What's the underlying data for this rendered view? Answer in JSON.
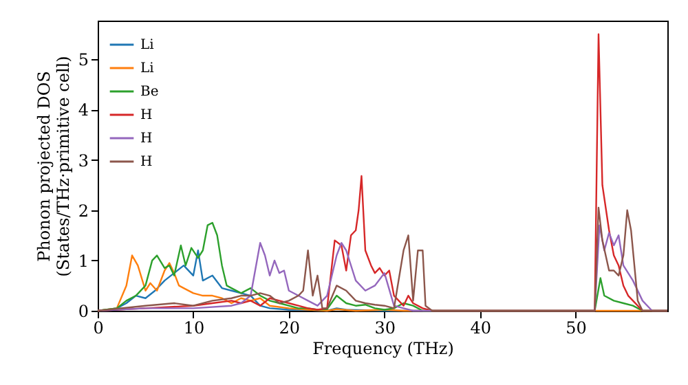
{
  "chart_data": {
    "type": "line",
    "xlabel": "Frequency (THz)",
    "ylabel": "Phonon projected DOS\n(States/THz·primitive cell)",
    "xlim": [
      0,
      59.6
    ],
    "ylim": [
      0,
      5.77
    ],
    "xticks": [
      0,
      10,
      20,
      30,
      40,
      50
    ],
    "yticks": [
      0,
      1,
      2,
      3,
      4,
      5
    ],
    "grid": false,
    "legend": "top left",
    "marker": "none",
    "line_style": "solid",
    "series": [
      {
        "name": "Li",
        "color": "#1f77b4",
        "x": [
          0,
          2,
          3,
          4,
          5,
          6,
          7,
          8,
          9,
          10,
          10.5,
          11,
          12,
          13,
          14,
          15,
          16,
          17,
          18,
          20,
          22,
          24,
          25,
          26,
          28,
          30,
          35
        ],
        "values": [
          0,
          0.05,
          0.15,
          0.3,
          0.25,
          0.4,
          0.6,
          0.75,
          0.9,
          0.7,
          1.2,
          0.6,
          0.7,
          0.45,
          0.4,
          0.35,
          0.3,
          0.1,
          0.05,
          0.02,
          0.02,
          0,
          0.05,
          0.02,
          0.01,
          0,
          0
        ]
      },
      {
        "name": "Li",
        "color": "#ff7f0e",
        "x": [
          0,
          2,
          3,
          3.6,
          4.2,
          5,
          5.5,
          6.2,
          7,
          7.5,
          8,
          8.5,
          9,
          10,
          11,
          12,
          13,
          14,
          15,
          16,
          17,
          18,
          20,
          22,
          24,
          25,
          27,
          30,
          32,
          52,
          59.6
        ],
        "values": [
          0,
          0.05,
          0.5,
          1.1,
          0.9,
          0.4,
          0.55,
          0.4,
          0.8,
          0.95,
          0.75,
          0.5,
          0.45,
          0.35,
          0.3,
          0.3,
          0.25,
          0.15,
          0.25,
          0.2,
          0.25,
          0.1,
          0.05,
          0.02,
          0,
          0.03,
          0,
          0.02,
          0,
          0,
          0
        ]
      },
      {
        "name": "Be",
        "color": "#2ca02c",
        "x": [
          0,
          2,
          3,
          4,
          5,
          5.7,
          6.2,
          7,
          7.5,
          8,
          8.7,
          9.2,
          9.8,
          10.5,
          11,
          11.5,
          12,
          12.5,
          13,
          13.5,
          14,
          15,
          16,
          17,
          18,
          19,
          20,
          21,
          22,
          23,
          24,
          25,
          26,
          27,
          28,
          29,
          30,
          31,
          32,
          33,
          34,
          52,
          52.6,
          53,
          54,
          55,
          56,
          57,
          59.6
        ],
        "values": [
          0,
          0.05,
          0.2,
          0.3,
          0.5,
          1.0,
          1.1,
          0.85,
          0.9,
          0.7,
          1.3,
          0.9,
          1.25,
          1.05,
          1.2,
          1.7,
          1.75,
          1.5,
          0.9,
          0.5,
          0.45,
          0.35,
          0.45,
          0.3,
          0.2,
          0.15,
          0.1,
          0.05,
          0.05,
          0.02,
          0.03,
          0.3,
          0.15,
          0.1,
          0.12,
          0.05,
          0.02,
          0.05,
          0.15,
          0.1,
          0,
          0,
          0.65,
          0.3,
          0.2,
          0.15,
          0.1,
          0,
          0
        ]
      },
      {
        "name": "H",
        "color": "#d62728",
        "x": [
          0,
          5,
          10,
          12,
          14,
          15,
          16,
          17,
          18,
          19,
          20,
          21,
          22,
          23,
          24,
          24.8,
          25.5,
          26,
          26.5,
          27,
          27.3,
          27.6,
          28,
          28.6,
          29,
          29.5,
          30,
          30.5,
          31,
          32,
          32.5,
          33,
          34,
          35,
          52,
          52.4,
          52.8,
          53.5,
          54,
          54.5,
          55,
          55.5,
          56,
          57,
          59.6
        ],
        "values": [
          0,
          0.05,
          0.1,
          0.15,
          0.2,
          0.15,
          0.2,
          0.1,
          0.25,
          0.2,
          0.15,
          0.1,
          0.05,
          0.02,
          0.05,
          1.4,
          1.3,
          0.8,
          1.5,
          1.6,
          2.0,
          2.68,
          1.2,
          0.9,
          0.75,
          0.85,
          0.7,
          0.8,
          0.3,
          0.1,
          0.3,
          0.15,
          0.05,
          0,
          0,
          5.5,
          2.5,
          1.6,
          1.1,
          0.9,
          0.5,
          0.3,
          0.2,
          0,
          0
        ]
      },
      {
        "name": "H",
        "color": "#9467bd",
        "x": [
          0,
          5,
          10,
          14,
          15,
          16,
          17,
          17.5,
          18,
          18.5,
          19,
          19.5,
          20,
          21,
          22,
          23,
          24,
          25,
          25.5,
          26,
          27,
          28,
          29,
          30,
          31,
          32,
          33,
          52,
          52.5,
          53,
          53.5,
          54,
          54.5,
          55,
          56,
          57,
          58,
          59.6
        ],
        "values": [
          0,
          0.05,
          0.05,
          0.1,
          0.15,
          0.3,
          1.35,
          1.1,
          0.7,
          1.0,
          0.75,
          0.8,
          0.4,
          0.3,
          0.2,
          0.1,
          0.3,
          1.1,
          1.35,
          1.2,
          0.6,
          0.4,
          0.5,
          0.75,
          0.1,
          0.05,
          0,
          0,
          1.7,
          1.2,
          1.55,
          1.3,
          1.5,
          0.9,
          0.6,
          0.2,
          0,
          0
        ]
      },
      {
        "name": "H",
        "color": "#8c564b",
        "x": [
          0,
          5,
          8,
          10,
          12,
          14,
          15,
          16,
          17,
          18,
          19,
          20,
          21,
          21.5,
          22,
          22.5,
          23,
          23.5,
          24,
          25,
          26,
          27,
          28,
          29,
          30,
          31,
          32,
          32.5,
          33,
          33.5,
          34,
          34.3,
          35,
          52,
          52.4,
          52.8,
          53.5,
          54,
          54.5,
          55,
          55.4,
          55.8,
          56.5,
          57,
          59.6
        ],
        "values": [
          0,
          0.1,
          0.15,
          0.1,
          0.2,
          0.25,
          0.3,
          0.3,
          0.35,
          0.3,
          0.15,
          0.2,
          0.3,
          0.4,
          1.2,
          0.3,
          0.7,
          0.05,
          0.05,
          0.5,
          0.4,
          0.2,
          0.15,
          0.12,
          0.1,
          0.05,
          1.2,
          1.5,
          0.2,
          1.2,
          1.2,
          0.1,
          0,
          0,
          2.05,
          1.4,
          0.8,
          0.8,
          0.7,
          1.1,
          2.0,
          1.6,
          0.2,
          0,
          0
        ]
      }
    ]
  }
}
